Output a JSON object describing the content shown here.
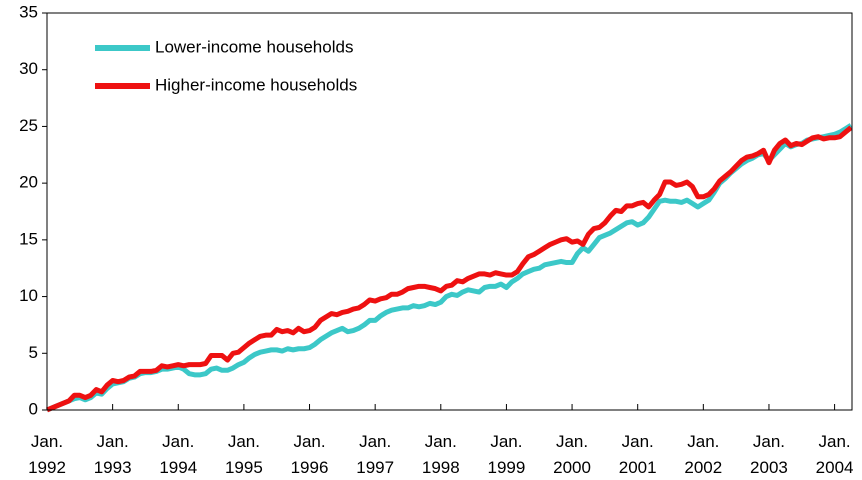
{
  "chart_data": {
    "type": "line",
    "categories": [
      "Jan. 1992",
      null,
      null,
      null,
      null,
      null,
      null,
      null,
      null,
      null,
      null,
      null,
      "Jan. 1993",
      null,
      null,
      null,
      null,
      null,
      null,
      null,
      null,
      null,
      null,
      null,
      "Jan. 1994",
      null,
      null,
      null,
      null,
      null,
      null,
      null,
      null,
      null,
      null,
      null,
      "Jan. 1995",
      null,
      null,
      null,
      null,
      null,
      null,
      null,
      null,
      null,
      null,
      null,
      "Jan. 1996",
      null,
      null,
      null,
      null,
      null,
      null,
      null,
      null,
      null,
      null,
      null,
      "Jan. 1997",
      null,
      null,
      null,
      null,
      null,
      null,
      null,
      null,
      null,
      null,
      null,
      "Jan. 1998",
      null,
      null,
      null,
      null,
      null,
      null,
      null,
      null,
      null,
      null,
      null,
      "Jan. 1999",
      null,
      null,
      null,
      null,
      null,
      null,
      null,
      null,
      null,
      null,
      null,
      "Jan. 2000",
      null,
      null,
      null,
      null,
      null,
      null,
      null,
      null,
      null,
      null,
      null,
      "Jan. 2001",
      null,
      null,
      null,
      null,
      null,
      null,
      null,
      null,
      null,
      null,
      null,
      "Jan. 2002",
      null,
      null,
      null,
      null,
      null,
      null,
      null,
      null,
      null,
      null,
      null,
      "Jan. 2003",
      null,
      null,
      null,
      null,
      null,
      null,
      null,
      null,
      null,
      null,
      null,
      "Jan. 2004",
      null,
      null,
      null
    ],
    "series": [
      {
        "name": "Lower-income households",
        "color": "#3cc8c8",
        "values": [
          0,
          0.2,
          0.4,
          0.6,
          0.8,
          1.0,
          1.1,
          0.9,
          1.1,
          1.5,
          1.4,
          1.9,
          2.3,
          2.4,
          2.5,
          2.8,
          2.9,
          3.2,
          3.3,
          3.3,
          3.4,
          3.6,
          3.6,
          3.7,
          3.8,
          3.6,
          3.2,
          3.1,
          3.1,
          3.2,
          3.6,
          3.7,
          3.5,
          3.5,
          3.7,
          4.0,
          4.2,
          4.6,
          4.9,
          5.1,
          5.2,
          5.3,
          5.3,
          5.2,
          5.4,
          5.3,
          5.4,
          5.4,
          5.5,
          5.8,
          6.2,
          6.5,
          6.8,
          7.0,
          7.2,
          6.9,
          7.0,
          7.2,
          7.5,
          7.9,
          7.9,
          8.3,
          8.6,
          8.8,
          8.9,
          9.0,
          9.0,
          9.2,
          9.1,
          9.2,
          9.4,
          9.3,
          9.5,
          10.0,
          10.2,
          10.1,
          10.4,
          10.6,
          10.5,
          10.4,
          10.8,
          10.9,
          10.9,
          11.1,
          10.8,
          11.3,
          11.6,
          12.0,
          12.2,
          12.4,
          12.5,
          12.8,
          12.9,
          13.0,
          13.1,
          13.0,
          13.0,
          13.8,
          14.3,
          14.0,
          14.6,
          15.2,
          15.4,
          15.6,
          15.9,
          16.2,
          16.5,
          16.6,
          16.3,
          16.5,
          17.0,
          17.7,
          18.4,
          18.5,
          18.4,
          18.4,
          18.3,
          18.5,
          18.2,
          17.9,
          18.2,
          18.5,
          19.2,
          20.0,
          20.4,
          20.9,
          21.3,
          21.7,
          22.0,
          22.2,
          22.5,
          22.6,
          22.0,
          22.5,
          23.0,
          23.5,
          23.2,
          23.4,
          23.5,
          23.8,
          23.9,
          24.0,
          24.1,
          24.2,
          24.3,
          24.5,
          24.8,
          25.1
        ]
      },
      {
        "name": "Higher-income households",
        "color": "#ee1111",
        "values": [
          0,
          0.2,
          0.4,
          0.6,
          0.8,
          1.3,
          1.3,
          1.1,
          1.3,
          1.8,
          1.6,
          2.2,
          2.6,
          2.5,
          2.6,
          2.9,
          3.0,
          3.4,
          3.4,
          3.4,
          3.5,
          3.9,
          3.8,
          3.9,
          4.0,
          3.9,
          4.0,
          4.0,
          4.0,
          4.1,
          4.8,
          4.8,
          4.8,
          4.4,
          5.0,
          5.1,
          5.5,
          5.9,
          6.2,
          6.5,
          6.6,
          6.6,
          7.1,
          6.9,
          7.0,
          6.8,
          7.2,
          6.9,
          7.0,
          7.3,
          7.9,
          8.2,
          8.5,
          8.4,
          8.6,
          8.7,
          8.9,
          9.0,
          9.3,
          9.7,
          9.6,
          9.8,
          9.9,
          10.2,
          10.2,
          10.4,
          10.7,
          10.8,
          10.9,
          10.9,
          10.8,
          10.7,
          10.5,
          10.9,
          11.0,
          11.4,
          11.3,
          11.6,
          11.8,
          12.0,
          12.0,
          11.9,
          12.1,
          12.0,
          11.9,
          11.9,
          12.2,
          12.9,
          13.5,
          13.7,
          14.0,
          14.3,
          14.6,
          14.8,
          15.0,
          15.1,
          14.8,
          14.9,
          14.6,
          15.5,
          16.0,
          16.1,
          16.5,
          17.1,
          17.6,
          17.5,
          18.0,
          18.0,
          18.2,
          18.3,
          17.9,
          18.5,
          19.0,
          20.1,
          20.1,
          19.8,
          19.9,
          20.1,
          19.7,
          18.8,
          18.8,
          19.0,
          19.5,
          20.2,
          20.6,
          21.0,
          21.5,
          22.0,
          22.3,
          22.4,
          22.6,
          22.9,
          21.8,
          22.9,
          23.5,
          23.8,
          23.3,
          23.5,
          23.4,
          23.7,
          24.0,
          24.1,
          23.9,
          24.0,
          24.0,
          24.1,
          24.5,
          24.9
        ]
      }
    ],
    "ylim": [
      0,
      35
    ],
    "yticks": [
      0,
      5,
      10,
      15,
      20,
      25,
      30,
      35
    ],
    "legend": "upper left"
  }
}
